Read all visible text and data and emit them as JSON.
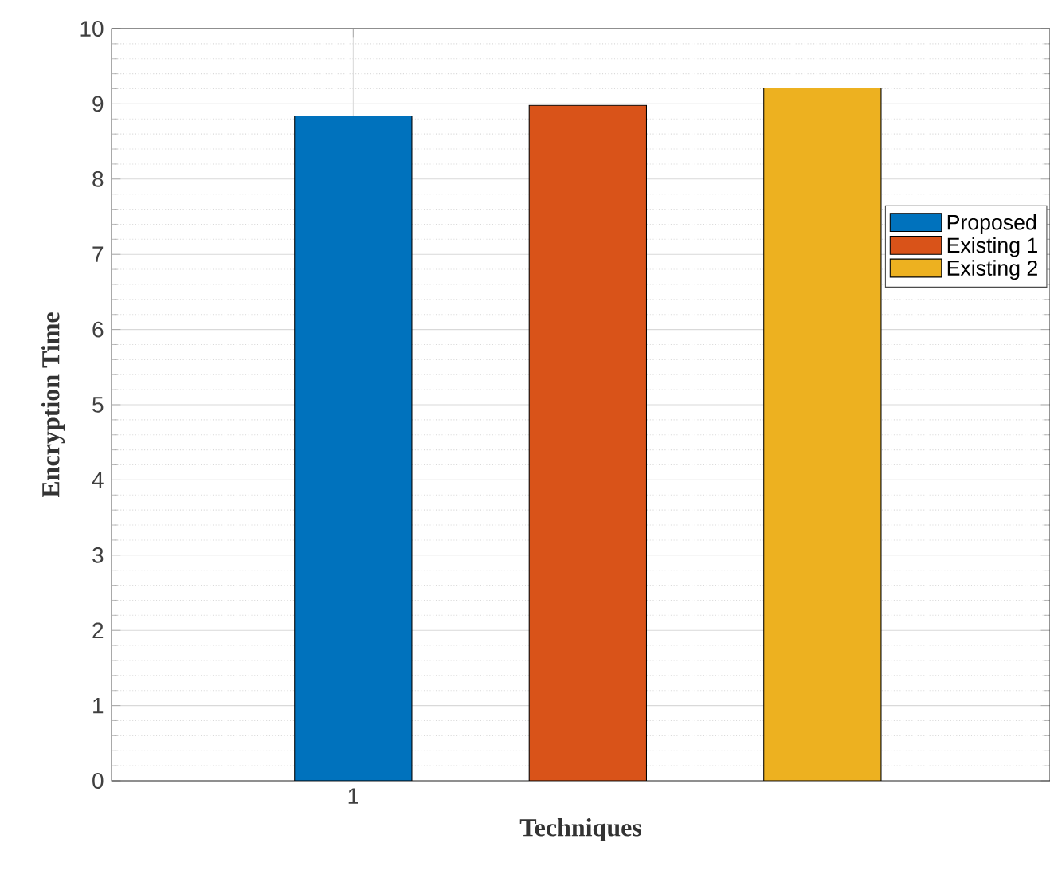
{
  "chart_data": {
    "type": "bar",
    "xlabel": "Techniques",
    "ylabel": "Encryption Time",
    "categories": [
      "1",
      null,
      null
    ],
    "series": [
      {
        "name": "Proposed",
        "color": "#0072bd",
        "values": [
          8.84,
          null,
          null
        ]
      },
      {
        "name": "Existing 1",
        "color": "#d95319",
        "values": [
          null,
          8.98,
          null
        ]
      },
      {
        "name": "Existing 2",
        "color": "#edb120",
        "values": [
          null,
          null,
          9.21
        ]
      }
    ],
    "ylim": [
      0,
      10
    ],
    "yticks": [
      0,
      1,
      2,
      3,
      4,
      5,
      6,
      7,
      8,
      9,
      10
    ],
    "grid": true,
    "legend": "right"
  }
}
